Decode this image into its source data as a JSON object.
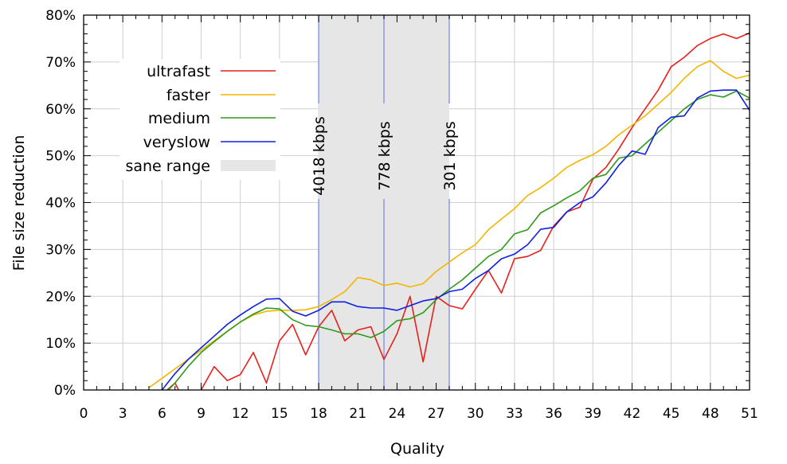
{
  "chart_data": {
    "type": "line",
    "xlabel": "Quality",
    "ylabel": "File size reduction",
    "xlim": [
      0,
      51
    ],
    "ylim": [
      0,
      80
    ],
    "x_ticks": [
      0,
      3,
      6,
      9,
      12,
      15,
      18,
      21,
      24,
      27,
      30,
      33,
      36,
      39,
      42,
      45,
      48,
      51
    ],
    "y_ticks": [
      0,
      10,
      20,
      30,
      40,
      50,
      60,
      70,
      80
    ],
    "y_tick_labels": [
      "0%",
      "10%",
      "20%",
      "30%",
      "40%",
      "50%",
      "60%",
      "70%",
      "80%"
    ],
    "grid": true,
    "legend_position": "top-left",
    "shaded_range": {
      "label": "sane range",
      "x": [
        18,
        28
      ],
      "color": "#e6e6e6"
    },
    "vertical_lines": [
      {
        "x": 18,
        "label": "4018 kbps"
      },
      {
        "x": 23,
        "label": "778 kbps"
      },
      {
        "x": 28,
        "label": "301 kbps"
      }
    ],
    "vertical_line_color": "#8899ee",
    "series": [
      {
        "name": "ultrafast",
        "color": "#e8201c",
        "x": [
          6.4,
          7,
          8,
          9,
          10,
          11,
          12,
          13,
          14,
          15,
          16,
          17,
          18,
          19,
          20,
          21,
          22,
          23,
          24,
          25,
          26,
          27,
          28,
          29,
          30,
          31,
          32,
          33,
          34,
          35,
          36,
          37,
          38,
          39,
          40,
          41,
          42,
          43,
          44,
          45,
          46,
          47,
          48,
          49,
          50,
          51
        ],
        "y": [
          0,
          1.5,
          -4,
          0,
          5,
          2,
          3.3,
          8,
          1.5,
          10.5,
          14,
          7.5,
          13.5,
          17,
          10.5,
          12.8,
          13.5,
          6.5,
          12,
          20,
          6,
          20,
          18,
          17.3,
          21.5,
          25.5,
          20.7,
          28,
          28.5,
          29.8,
          35,
          38,
          39,
          45,
          47.5,
          51.5,
          56,
          60,
          64,
          69,
          71,
          73.5,
          75,
          76,
          75,
          76.2
        ]
      },
      {
        "name": "faster",
        "color": "#f2b600",
        "x": [
          5,
          6,
          7,
          8,
          9,
          10,
          11,
          12,
          13,
          14,
          15,
          16,
          17,
          18,
          19,
          20,
          21,
          22,
          23,
          24,
          25,
          26,
          27,
          28,
          29,
          30,
          31,
          32,
          33,
          34,
          35,
          36,
          37,
          38,
          39,
          40,
          41,
          42,
          43,
          44,
          45,
          46,
          47,
          48,
          49,
          50,
          51
        ],
        "y": [
          0.5,
          2.5,
          4.5,
          6.5,
          8.5,
          10.5,
          12.5,
          14.5,
          16,
          16.8,
          17,
          17,
          17.1,
          17.8,
          19.3,
          21,
          24,
          23.5,
          22.3,
          22.8,
          22,
          22.7,
          25.3,
          27.3,
          29.3,
          31,
          34.2,
          36.5,
          38.7,
          41.5,
          43.2,
          45.2,
          47.5,
          49,
          50.2,
          52,
          54.5,
          56.5,
          58.5,
          61,
          63.5,
          66.5,
          69,
          70.3,
          68,
          66.5,
          67.2
        ]
      },
      {
        "name": "medium",
        "color": "#2e9a1a",
        "x": [
          6.5,
          7,
          8,
          9,
          10,
          11,
          12,
          13,
          14,
          15,
          16,
          17,
          18,
          19,
          20,
          21,
          22,
          23,
          24,
          25,
          26,
          27,
          28,
          29,
          30,
          31,
          32,
          33,
          34,
          35,
          36,
          37,
          38,
          39,
          40,
          41,
          42,
          43,
          44,
          45,
          46,
          47,
          48,
          49,
          50,
          51
        ],
        "y": [
          0,
          1.5,
          5,
          8,
          10.3,
          12.5,
          14.5,
          16.2,
          17.5,
          17.3,
          15,
          13.8,
          13.5,
          12.8,
          12,
          12,
          11.2,
          12.5,
          14.8,
          15.2,
          16.5,
          19.3,
          21.5,
          23.5,
          26,
          28.5,
          30,
          33.3,
          34.2,
          37.8,
          39.3,
          41,
          42.5,
          45.2,
          46,
          49.5,
          50,
          52.5,
          55,
          57.5,
          60,
          62,
          63,
          62.5,
          63.8,
          62.3
        ]
      },
      {
        "name": "veryslow",
        "color": "#1020e0",
        "x": [
          6,
          7,
          8,
          9,
          10,
          11,
          12,
          13,
          14,
          15,
          16,
          17,
          18,
          19,
          20,
          21,
          22,
          23,
          24,
          25,
          26,
          27,
          28,
          29,
          30,
          31,
          32,
          33,
          34,
          35,
          36,
          37,
          38,
          39,
          40,
          41,
          42,
          43,
          44,
          45,
          46,
          47,
          48,
          49,
          50,
          51
        ],
        "y": [
          0,
          3.5,
          6.5,
          9,
          11.5,
          14,
          16,
          17.8,
          19.4,
          19.5,
          16.8,
          15.8,
          17,
          18.8,
          18.8,
          17.8,
          17.5,
          17.5,
          17,
          18,
          19,
          19.5,
          21,
          21.5,
          23.8,
          25.5,
          28,
          29,
          31,
          34.3,
          34.7,
          38,
          40,
          41.2,
          44.2,
          48,
          51,
          50.3,
          56,
          58.2,
          58.5,
          62.3,
          63.8,
          64,
          64,
          59.7
        ]
      }
    ]
  }
}
